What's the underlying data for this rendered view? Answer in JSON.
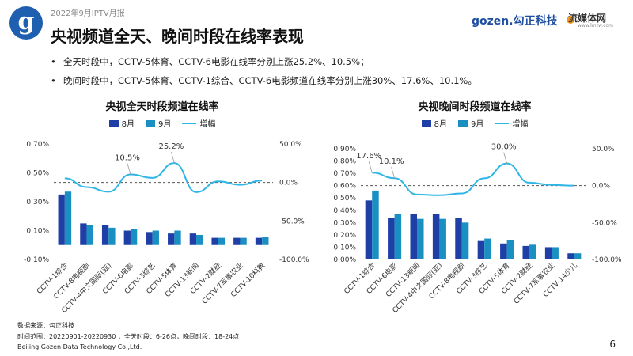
{
  "header": {
    "report": "2022年9月IPTV月报",
    "title": "央视频道全天、晚间时段在线率表现",
    "brand1": "gozen.勾正科技",
    "brand2": "流媒体网",
    "brand2_url": "www.lmtw.com",
    "logo_letter": "g"
  },
  "bullets": [
    "全天时段中，CCTV-5体育、CCTV-6电影在线率分别上涨25.2%、10.5%；",
    "晚间时段中，CCTV-5体育、CCTV-1综合、CCTV-6电影频道在线率分别上涨30%、17.6%、10.1%。"
  ],
  "legend": {
    "s1": "8月",
    "s2": "9月",
    "s3": "增幅"
  },
  "colors": {
    "aug": "#1f3fa6",
    "sep": "#1a8fc2",
    "growth": "#2fb6e6"
  },
  "chart_data": [
    {
      "type": "bar",
      "title": "央视全天时段频道在线率",
      "categories": [
        "CCTV-1综合",
        "CCTV-8电视剧",
        "CCTV-4中文国际(亚)",
        "CCTV-6电影",
        "CCTV-3综艺",
        "CCTV-5体育",
        "CCTV-13新闻",
        "CCTV-2财经",
        "CCTV-7军事农业",
        "CCTV-10科教"
      ],
      "series": [
        {
          "name": "8月",
          "axis": "left",
          "values": [
            0.35,
            0.15,
            0.14,
            0.1,
            0.09,
            0.08,
            0.08,
            0.05,
            0.05,
            0.05
          ]
        },
        {
          "name": "9月",
          "axis": "left",
          "values": [
            0.37,
            0.14,
            0.12,
            0.11,
            0.1,
            0.1,
            0.07,
            0.05,
            0.05,
            0.055
          ]
        },
        {
          "name": "增幅",
          "type": "line",
          "axis": "right",
          "values": [
            5.5,
            -6.0,
            -12.0,
            10.5,
            6.0,
            25.2,
            -12.5,
            1.5,
            -3.0,
            2.5
          ]
        }
      ],
      "ylim": [
        -0.1,
        0.7
      ],
      "yticks": [
        "-0.10%",
        "0.10%",
        "0.30%",
        "0.50%",
        "0.70%"
      ],
      "y2lim": [
        -100,
        50
      ],
      "y2ticks": [
        "-100.0%",
        "-50.0%",
        "0.0%",
        "50.0%"
      ],
      "annotations": [
        {
          "index": 3,
          "text": "10.5%"
        },
        {
          "index": 5,
          "text": "25.2%"
        }
      ]
    },
    {
      "type": "bar",
      "title": "央视晚间时段频道在线率",
      "categories": [
        "CCTV-1综合",
        "CCTV-6电影",
        "CCTV-13新闻",
        "CCTV-4中文国际(亚)",
        "CCTV-8电视剧",
        "CCTV-3综艺",
        "CCTV-5体育",
        "CCTV-2财经",
        "CCTV-7军事农业",
        "CCTV-14少儿"
      ],
      "series": [
        {
          "name": "8月",
          "axis": "left",
          "values": [
            0.48,
            0.34,
            0.37,
            0.37,
            0.34,
            0.15,
            0.13,
            0.11,
            0.1,
            0.05
          ]
        },
        {
          "name": "9月",
          "axis": "left",
          "values": [
            0.56,
            0.37,
            0.33,
            0.33,
            0.3,
            0.17,
            0.16,
            0.12,
            0.1,
            0.05
          ]
        },
        {
          "name": "增幅",
          "type": "line",
          "axis": "right",
          "values": [
            17.6,
            10.1,
            -12.0,
            -13.0,
            -10.5,
            10.0,
            30.0,
            4.0,
            1.0,
            0.0
          ]
        }
      ],
      "ylim": [
        0,
        0.9
      ],
      "yticks": [
        "0.00%",
        "0.10%",
        "0.20%",
        "0.30%",
        "0.40%",
        "0.50%",
        "0.60%",
        "0.70%",
        "0.80%",
        "0.90%"
      ],
      "y2lim": [
        -100,
        50
      ],
      "y2ticks": [
        "-100.0%",
        "-50.0%",
        "0.0%",
        "50.0%"
      ],
      "annotations": [
        {
          "index": 0,
          "text": "17.6%"
        },
        {
          "index": 1,
          "text": "10.1%"
        },
        {
          "index": 6,
          "text": "30.0%"
        }
      ]
    }
  ],
  "footer": {
    "source": "数据来源：勾正科技",
    "period": "时间范围：20220901-20220930 ，全天时段：6-26点，晚间时段：18-24点",
    "company": "Beijing Gozen Data Technology Co.,Ltd."
  },
  "page_number": "6"
}
